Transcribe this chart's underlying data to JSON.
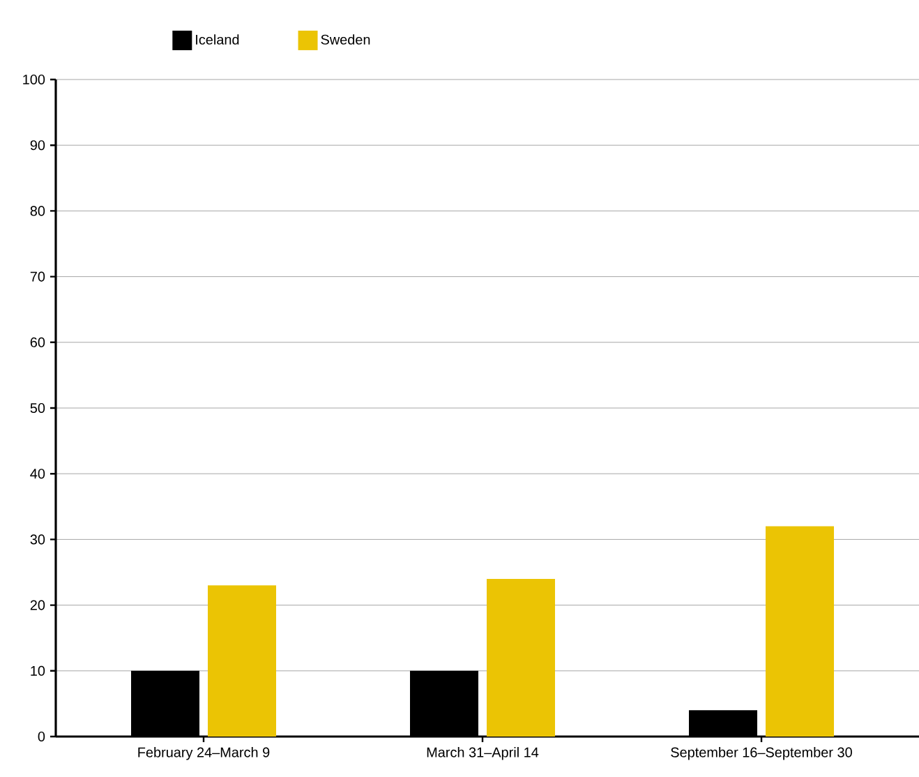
{
  "chart_data": {
    "type": "bar",
    "categories": [
      "February 24–March 9",
      "March 31–April 14",
      "September 16–September 30"
    ],
    "series": [
      {
        "name": "Iceland",
        "color": "#000000",
        "values": [
          10,
          10,
          4
        ]
      },
      {
        "name": "Sweden",
        "color": "#ebc404",
        "values": [
          23,
          24,
          32
        ]
      }
    ],
    "ylim": [
      0,
      100
    ],
    "yticks": [
      0,
      10,
      20,
      30,
      40,
      50,
      60,
      70,
      80,
      90,
      100
    ],
    "grid": "y",
    "legend": "top left"
  }
}
